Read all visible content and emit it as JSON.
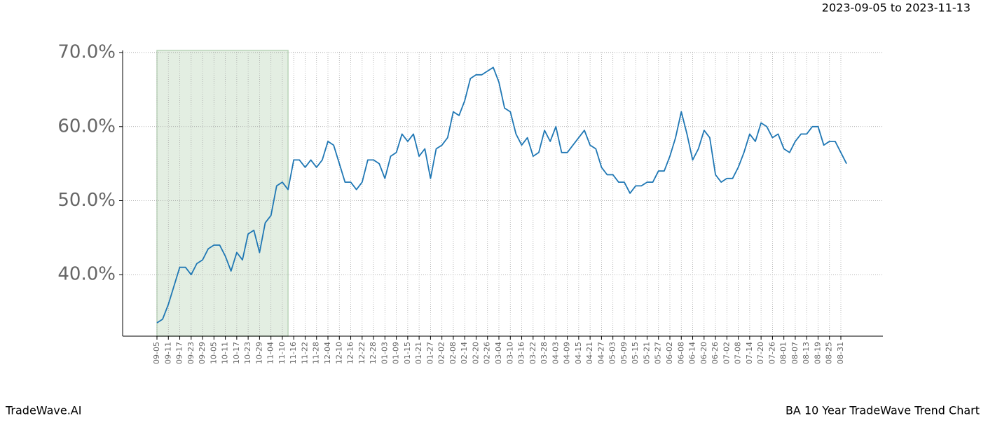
{
  "chart_data": {
    "type": "line",
    "range_label": "2023-09-05 to 2023-11-13",
    "brand": "TradeWave.AI",
    "title": "BA 10 Year TradeWave Trend Chart",
    "categories": [
      "09-05",
      null,
      "09-11",
      null,
      "09-17",
      null,
      "09-23",
      null,
      "09-29",
      null,
      "10-05",
      null,
      "10-11",
      null,
      "10-17",
      null,
      "10-23",
      null,
      "10-29",
      null,
      "11-04",
      null,
      "11-10",
      null,
      "11-16",
      null,
      "11-22",
      null,
      "11-28",
      null,
      "12-04",
      null,
      "12-10",
      null,
      "12-16",
      null,
      "12-22",
      null,
      "12-28",
      null,
      "01-03",
      null,
      "01-09",
      null,
      "01-15",
      null,
      "01-21",
      null,
      "01-27",
      null,
      "02-02",
      null,
      "02-08",
      null,
      "02-14",
      null,
      "02-20",
      null,
      "02-26",
      null,
      "03-04",
      null,
      "03-10",
      null,
      "03-16",
      null,
      "03-22",
      null,
      "03-28",
      null,
      "04-03",
      null,
      "04-09",
      null,
      "04-15",
      null,
      "04-21",
      null,
      "04-27",
      null,
      "05-03",
      null,
      "05-09",
      null,
      "05-15",
      null,
      "05-21",
      null,
      "05-27",
      null,
      "06-02",
      null,
      "06-08",
      null,
      "06-14",
      null,
      "06-20",
      null,
      "06-26",
      null,
      "07-02",
      null,
      "07-08",
      null,
      "07-14",
      null,
      "07-20",
      null,
      "07-26",
      null,
      "08-01",
      null,
      "08-07",
      null,
      "08-13",
      null,
      "08-19",
      null,
      "08-25",
      null,
      "08-31",
      null
    ],
    "values": [
      33.5,
      34.0,
      36.0,
      38.5,
      41.0,
      41.0,
      40.0,
      41.5,
      42.0,
      43.5,
      44.0,
      44.0,
      42.5,
      40.5,
      43.0,
      42.0,
      45.5,
      46.0,
      43.0,
      47.0,
      48.0,
      52.0,
      52.5,
      51.5,
      55.5,
      55.5,
      54.5,
      55.5,
      54.5,
      55.5,
      58.0,
      57.5,
      55.0,
      52.5,
      52.5,
      51.5,
      52.5,
      55.5,
      55.5,
      55.0,
      53.0,
      56.0,
      56.5,
      59.0,
      58.0,
      59.0,
      56.0,
      57.0,
      53.0,
      57.0,
      57.5,
      58.5,
      62.0,
      61.5,
      63.5,
      66.5,
      67.0,
      67.0,
      67.5,
      68.0,
      66.0,
      62.5,
      62.0,
      59.0,
      57.5,
      58.5,
      56.0,
      56.5,
      59.5,
      58.0,
      60.0,
      56.5,
      56.5,
      57.5,
      58.5,
      59.5,
      57.5,
      57.0,
      54.5,
      53.5,
      53.5,
      52.5,
      52.5,
      51.0,
      52.0,
      52.0,
      52.5,
      52.5,
      54.0,
      54.0,
      56.0,
      58.5,
      62.0,
      59.0,
      55.5,
      57.0,
      59.5,
      58.5,
      53.5,
      52.5,
      53.0,
      53.0,
      54.5,
      56.5,
      59.0,
      58.0,
      60.5,
      60.0,
      58.5,
      59.0,
      57.0,
      56.5,
      58.0,
      59.0,
      59.0,
      60.0,
      60.0,
      57.5,
      58.0,
      58.0,
      56.5,
      55.0
    ],
    "color": "#1f77b4",
    "shaded_span": [
      0,
      23
    ],
    "shade_color": "#e3eee2",
    "ylim": [
      31.7,
      70.1
    ],
    "yticks": [
      {
        "value": 40,
        "label": "40.0%"
      },
      {
        "value": 50,
        "label": "50.0%"
      },
      {
        "value": 60,
        "label": "60.0%"
      },
      {
        "value": 70,
        "label": "70.0%"
      }
    ],
    "grid": true
  }
}
